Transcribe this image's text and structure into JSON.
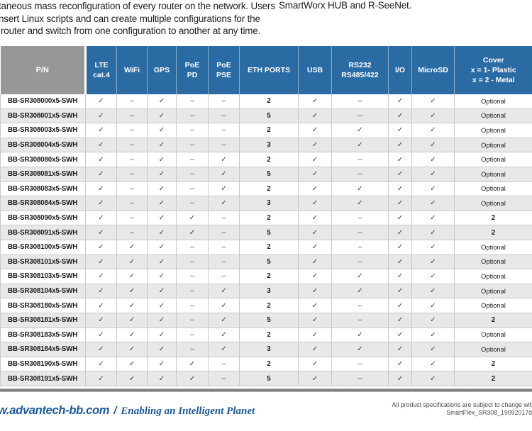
{
  "top": {
    "left_lines": [
      "taneous mass reconfiguration of every router on the network. Users",
      "nsert Linux scripts and can create multiple configurations for the",
      "router and switch from one configuration to another at any time."
    ],
    "right_line": "SmartWorx HUB and R-SeeNet."
  },
  "table": {
    "headers": [
      "P/N",
      "LTE\ncat.4",
      "WiFi",
      "GPS",
      "PoE\nPD",
      "PoE\nPSE",
      "ETH PORTS",
      "USB",
      "RS232\nRS485/422",
      "I/O",
      "MicroSD",
      "Cover\nx = 1- Plastic\nx = 2 - Metal"
    ],
    "rows": [
      [
        "BB-SR308000x5-SWH",
        "✓",
        "–",
        "✓",
        "–",
        "–",
        "2",
        "✓",
        "–",
        "✓",
        "✓",
        "Optional"
      ],
      [
        "BB-SR308001x5-SWH",
        "✓",
        "–",
        "✓",
        "–",
        "–",
        "5",
        "✓",
        "–",
        "✓",
        "✓",
        "Optional"
      ],
      [
        "BB-SR308003x5-SWH",
        "✓",
        "–",
        "✓",
        "–",
        "–",
        "2",
        "✓",
        "✓",
        "✓",
        "✓",
        "Optional"
      ],
      [
        "BB-SR308004x5-SWH",
        "✓",
        "–",
        "✓",
        "–",
        "–",
        "3",
        "✓",
        "✓",
        "✓",
        "✓",
        "Optional"
      ],
      [
        "BB-SR308080x5-SWH",
        "✓",
        "–",
        "✓",
        "–",
        "✓",
        "2",
        "✓",
        "–",
        "✓",
        "✓",
        "Optional"
      ],
      [
        "BB-SR308081x5-SWH",
        "✓",
        "–",
        "✓",
        "–",
        "✓",
        "5",
        "✓",
        "–",
        "✓",
        "✓",
        "Optional"
      ],
      [
        "BB-SR308083x5-SWH",
        "✓",
        "–",
        "✓",
        "–",
        "✓",
        "2",
        "✓",
        "✓",
        "✓",
        "✓",
        "Optional"
      ],
      [
        "BB-SR308084x5-SWH",
        "✓",
        "–",
        "✓",
        "–",
        "✓",
        "3",
        "✓",
        "✓",
        "✓",
        "✓",
        "Optional"
      ],
      [
        "BB-SR308090x5-SWH",
        "✓",
        "–",
        "✓",
        "✓",
        "–",
        "2",
        "✓",
        "–",
        "✓",
        "✓",
        "2"
      ],
      [
        "BB-SR308091x5-SWH",
        "✓",
        "–",
        "✓",
        "✓",
        "–",
        "5",
        "✓",
        "–",
        "✓",
        "✓",
        "2"
      ],
      [
        "BB-SR308100x5-SWH",
        "✓",
        "✓",
        "✓",
        "–",
        "–",
        "2",
        "✓",
        "–",
        "✓",
        "✓",
        "Optional"
      ],
      [
        "BB-SR308101x5-SWH",
        "✓",
        "✓",
        "✓",
        "–",
        "–",
        "5",
        "✓",
        "–",
        "✓",
        "✓",
        "Optional"
      ],
      [
        "BB-SR308103x5-SWH",
        "✓",
        "✓",
        "✓",
        "–",
        "–",
        "2",
        "✓",
        "✓",
        "✓",
        "✓",
        "Optional"
      ],
      [
        "BB-SR308104x5-SWH",
        "✓",
        "✓",
        "✓",
        "–",
        "✓",
        "3",
        "✓",
        "✓",
        "✓",
        "✓",
        "Optional"
      ],
      [
        "BB-SR308180x5-SWH",
        "✓",
        "✓",
        "✓",
        "–",
        "✓",
        "2",
        "✓",
        "–",
        "✓",
        "✓",
        "Optional"
      ],
      [
        "BB-SR308181x5-SWH",
        "✓",
        "✓",
        "✓",
        "–",
        "✓",
        "5",
        "✓",
        "–",
        "✓",
        "✓",
        "2"
      ],
      [
        "BB-SR308183x5-SWH",
        "✓",
        "✓",
        "✓",
        "–",
        "✓",
        "2",
        "✓",
        "✓",
        "✓",
        "✓",
        "Optional"
      ],
      [
        "BB-SR308184x5-SWH",
        "✓",
        "✓",
        "✓",
        "–",
        "✓",
        "3",
        "✓",
        "✓",
        "✓",
        "✓",
        "Optional"
      ],
      [
        "BB-SR308190x5-SWH",
        "✓",
        "✓",
        "✓",
        "✓",
        "–",
        "2",
        "✓",
        "–",
        "✓",
        "✓",
        "2"
      ],
      [
        "BB-SR308191x5-SWH",
        "✓",
        "✓",
        "✓",
        "✓",
        "–",
        "5",
        "✓",
        "–",
        "✓",
        "✓",
        "2"
      ]
    ]
  },
  "footer": {
    "site": "w.advantech-bb.com",
    "separator": "/",
    "tagline": "Enabling an Intelligent Planet",
    "note_line1": "All product specifications are subject to change with",
    "note_line2": "SmartFlex_SR308_19092017d"
  },
  "colors": {
    "header_blue": "#2b6ba4",
    "header_gray": "#979797",
    "row_alt_gray": "#e8e8e8",
    "grid_border": "#c9c9c9",
    "footer_blue": "#1b5a9b"
  }
}
